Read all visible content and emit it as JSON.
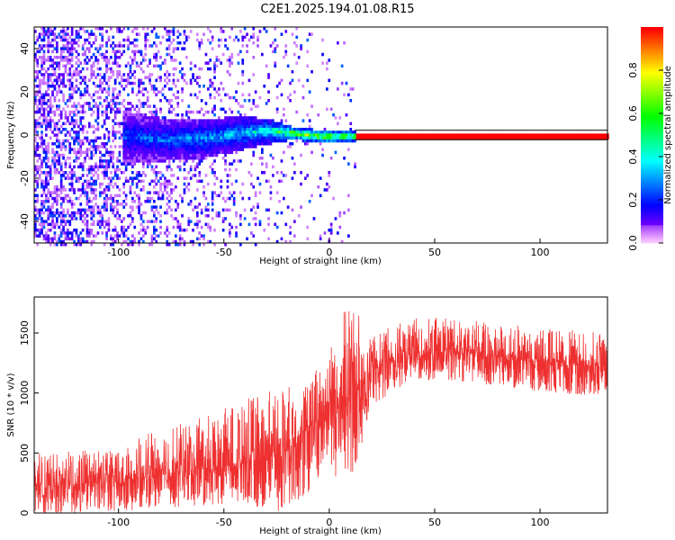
{
  "title": "C2E1.2025.194.01.08.R15",
  "colors": {
    "snr_line": "#ee3030",
    "background": "#ffffff",
    "axis": "#000000"
  },
  "chart_data": [
    {
      "type": "heatmap",
      "title": "C2E1.2025.194.01.08.R15",
      "xlabel": "Height of straight line (km)",
      "ylabel": "Frequency (Hz)",
      "xlim": [
        -140,
        132
      ],
      "ylim": [
        -50,
        50
      ],
      "xticks": [
        -100,
        -50,
        0,
        50,
        100
      ],
      "yticks": [
        -40,
        -20,
        0,
        20,
        40
      ],
      "xtick_labels": [
        "-100",
        "-50",
        "0",
        "50",
        "100"
      ],
      "ytick_labels": [
        "-40",
        "-20",
        "0",
        "20",
        "40"
      ],
      "colorbar": {
        "label": "Normalized spectral amplitude",
        "range": [
          0,
          1
        ],
        "ticks": [
          0.0,
          0.2,
          0.4,
          0.6,
          0.8
        ],
        "tick_labels": [
          "0.0",
          "0.2",
          "0.4",
          "0.6",
          "0.8"
        ],
        "colormap": "rainbow"
      },
      "features": {
        "noise_region_km": [
          -140,
          12
        ],
        "signal_onset_km": -98,
        "continuous_line_from_km": 12,
        "trace": [
          {
            "x": -98,
            "f": 0.0,
            "width_hz": 12,
            "amp": 0.3
          },
          {
            "x": -80,
            "f": -1.5,
            "width_hz": 10,
            "amp": 0.35
          },
          {
            "x": -60,
            "f": -1.0,
            "width_hz": 9,
            "amp": 0.4
          },
          {
            "x": -45,
            "f": 1.0,
            "width_hz": 8,
            "amp": 0.45
          },
          {
            "x": -30,
            "f": 2.5,
            "width_hz": 6,
            "amp": 0.55
          },
          {
            "x": -18,
            "f": 1.5,
            "width_hz": 3,
            "amp": 0.85
          },
          {
            "x": -5,
            "f": 0.0,
            "width_hz": 3,
            "amp": 0.95
          },
          {
            "x": 12,
            "f": 0.0,
            "width_hz": 2,
            "amp": 1.0
          },
          {
            "x": 132,
            "f": 0.0,
            "width_hz": 2,
            "amp": 1.0
          }
        ]
      }
    },
    {
      "type": "line",
      "xlabel": "Height of straight line (km)",
      "ylabel": "SNR (10 * v/v)",
      "xlim": [
        -140,
        132
      ],
      "ylim": [
        0,
        1800
      ],
      "xticks": [
        -100,
        -50,
        0,
        50,
        100
      ],
      "yticks": [
        0,
        500,
        1000,
        1500
      ],
      "xtick_labels": [
        "-100",
        "-50",
        "0",
        "50",
        "100"
      ],
      "ytick_labels": [
        "0",
        "500",
        "1000",
        "1500"
      ],
      "series": [
        {
          "color": "#ee3030",
          "envelope": [
            {
              "x": -140,
              "low": 0,
              "mid": 230,
              "high": 500
            },
            {
              "x": -120,
              "low": 0,
              "mid": 240,
              "high": 520
            },
            {
              "x": -100,
              "low": 10,
              "mid": 260,
              "high": 560
            },
            {
              "x": -80,
              "low": 40,
              "mid": 320,
              "high": 700
            },
            {
              "x": -60,
              "low": 60,
              "mid": 360,
              "high": 800
            },
            {
              "x": -40,
              "low": 80,
              "mid": 420,
              "high": 950
            },
            {
              "x": -25,
              "low": 10,
              "mid": 520,
              "high": 1050
            },
            {
              "x": -10,
              "low": 150,
              "mid": 700,
              "high": 1100
            },
            {
              "x": 0,
              "low": 400,
              "mid": 900,
              "high": 1400
            },
            {
              "x": 8,
              "low": 60,
              "mid": 900,
              "high": 1800
            },
            {
              "x": 20,
              "low": 900,
              "mid": 1200,
              "high": 1500
            },
            {
              "x": 40,
              "low": 1100,
              "mid": 1330,
              "high": 1620
            },
            {
              "x": 60,
              "low": 1100,
              "mid": 1350,
              "high": 1650
            },
            {
              "x": 80,
              "low": 1050,
              "mid": 1310,
              "high": 1580
            },
            {
              "x": 100,
              "low": 1000,
              "mid": 1270,
              "high": 1550
            },
            {
              "x": 132,
              "low": 970,
              "mid": 1220,
              "high": 1500
            }
          ]
        }
      ]
    }
  ]
}
